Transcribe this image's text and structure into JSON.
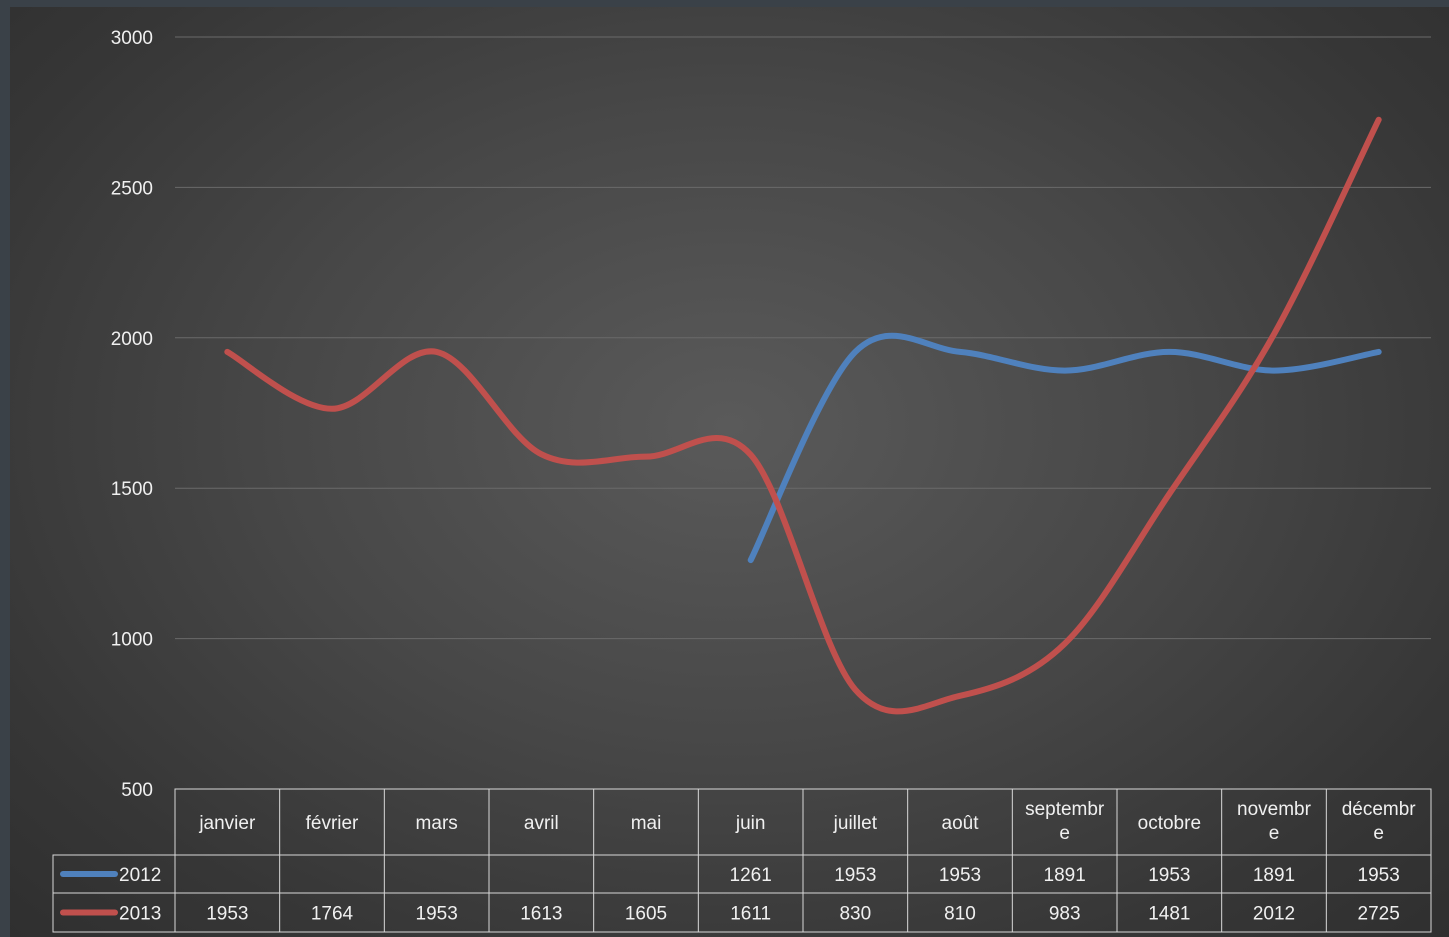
{
  "chart_data": {
    "type": "line",
    "categories": [
      "janvier",
      "février",
      "mars",
      "avril",
      "mai",
      "juin",
      "juillet",
      "août",
      "septembre",
      "octobre",
      "novembre",
      "décembre"
    ],
    "category_display": [
      [
        "janvier"
      ],
      [
        "février"
      ],
      [
        "mars"
      ],
      [
        "avril"
      ],
      [
        "mai"
      ],
      [
        "juin"
      ],
      [
        "juillet"
      ],
      [
        "août"
      ],
      [
        "septembr",
        "e"
      ],
      [
        "octobre"
      ],
      [
        "novembr",
        "e"
      ],
      [
        "décembr",
        "e"
      ]
    ],
    "series": [
      {
        "name": "2012",
        "color": "#4f81bd",
        "values": [
          null,
          null,
          null,
          null,
          null,
          1261,
          1953,
          1953,
          1891,
          1953,
          1891,
          1953
        ]
      },
      {
        "name": "2013",
        "color": "#c0504d",
        "values": [
          1953,
          1764,
          1953,
          1613,
          1605,
          1611,
          830,
          810,
          983,
          1481,
          2012,
          2725
        ]
      }
    ],
    "ylim": [
      500,
      3000
    ],
    "yticks": [
      500,
      1000,
      1500,
      2000,
      2500,
      3000
    ],
    "grid": true,
    "data_table": true,
    "legend": "in data table"
  }
}
